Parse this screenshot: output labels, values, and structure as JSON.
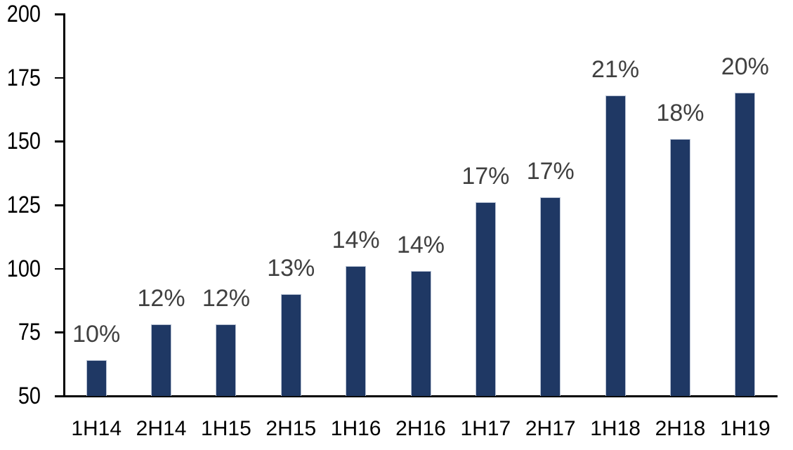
{
  "chart_data": {
    "type": "bar",
    "title": "",
    "xlabel": "",
    "ylabel": "",
    "categories": [
      "1H14",
      "2H14",
      "1H15",
      "2H15",
      "1H16",
      "2H16",
      "1H17",
      "2H17",
      "1H18",
      "2H18",
      "1H19"
    ],
    "values": [
      64,
      78,
      78,
      90,
      101,
      99,
      126,
      128,
      168,
      151,
      169
    ],
    "data_labels": [
      "10%",
      "12%",
      "12%",
      "13%",
      "14%",
      "14%",
      "17%",
      "17%",
      "21%",
      "18%",
      "20%"
    ],
    "ylim": [
      50,
      200
    ],
    "yticks": [
      50,
      75,
      100,
      125,
      150,
      175,
      200
    ],
    "grid": false,
    "legend": false,
    "bar_color": "#1f3864",
    "bar_border_color": "#b7c1d3",
    "axis_color": "#000000",
    "data_label_color": "#404040",
    "tick_label_color": "#000000"
  }
}
